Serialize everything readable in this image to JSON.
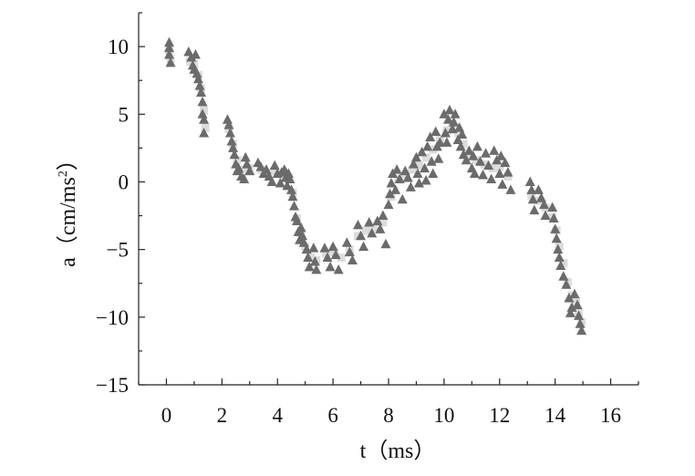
{
  "chart_data": {
    "type": "scatter",
    "xlabel": "t（ms）",
    "ylabel_main": "a（cm/ms",
    "ylabel_sup": "2",
    "ylabel_close": "）",
    "xlim": [
      -1,
      17
    ],
    "ylim": [
      -15,
      12.5
    ],
    "xticks": [
      0,
      2,
      4,
      6,
      8,
      10,
      12,
      14,
      16
    ],
    "yticks": [
      10,
      5,
      0,
      -5,
      -10,
      -15
    ],
    "grid": false,
    "series": [
      {
        "marker": "triangle",
        "color": "#6b6b6b",
        "points": [
          [
            0.1,
            10.3
          ],
          [
            0.1,
            9.9
          ],
          [
            0.1,
            9.4
          ],
          [
            0.15,
            8.8
          ],
          [
            0.8,
            9.6
          ],
          [
            0.9,
            9.2
          ],
          [
            0.95,
            8.6
          ],
          [
            1.0,
            8.3
          ],
          [
            1.05,
            9.4
          ],
          [
            1.1,
            8.0
          ],
          [
            1.15,
            7.6
          ],
          [
            1.2,
            7.1
          ],
          [
            1.25,
            6.6
          ],
          [
            1.3,
            5.9
          ],
          [
            1.3,
            5.0
          ],
          [
            1.35,
            4.6
          ],
          [
            1.35,
            3.6
          ],
          [
            2.2,
            4.6
          ],
          [
            2.25,
            4.2
          ],
          [
            2.3,
            3.6
          ],
          [
            2.35,
            3.0
          ],
          [
            2.4,
            2.5
          ],
          [
            2.45,
            2.0
          ],
          [
            2.5,
            1.3
          ],
          [
            2.55,
            0.8
          ],
          [
            2.6,
            1.0
          ],
          [
            2.7,
            0.4
          ],
          [
            2.8,
            0.2
          ],
          [
            2.85,
            1.8
          ],
          [
            2.9,
            1.3
          ],
          [
            3.0,
            0.8
          ],
          [
            3.3,
            1.4
          ],
          [
            3.4,
            1.1
          ],
          [
            3.5,
            0.6
          ],
          [
            3.6,
            0.9
          ],
          [
            3.7,
            0.4
          ],
          [
            3.8,
            0.0
          ],
          [
            3.9,
            1.2
          ],
          [
            4.0,
            0.6
          ],
          [
            4.1,
            -0.1
          ],
          [
            4.15,
            0.7
          ],
          [
            4.25,
            0.9
          ],
          [
            4.3,
            0.3
          ],
          [
            4.35,
            -0.3
          ],
          [
            4.4,
            0.6
          ],
          [
            4.45,
            0.2
          ],
          [
            4.5,
            -0.6
          ],
          [
            4.55,
            -1.1
          ],
          [
            4.6,
            -1.8
          ],
          [
            4.65,
            -2.6
          ],
          [
            4.7,
            -2.9
          ],
          [
            4.75,
            -3.7
          ],
          [
            4.8,
            -4.3
          ],
          [
            4.85,
            -3.4
          ],
          [
            4.9,
            -4.0
          ],
          [
            4.95,
            -4.5
          ],
          [
            5.05,
            -5.0
          ],
          [
            5.1,
            -5.6
          ],
          [
            5.15,
            -6.3
          ],
          [
            5.3,
            -4.9
          ],
          [
            5.35,
            -5.9
          ],
          [
            5.4,
            -6.5
          ],
          [
            5.7,
            -4.9
          ],
          [
            5.8,
            -5.6
          ],
          [
            5.9,
            -6.3
          ],
          [
            6.0,
            -4.8
          ],
          [
            6.1,
            -5.4
          ],
          [
            6.2,
            -6.5
          ],
          [
            6.5,
            -4.5
          ],
          [
            6.6,
            -5.2
          ],
          [
            6.7,
            -5.8
          ],
          [
            6.9,
            -3.2
          ],
          [
            7.0,
            -4.0
          ],
          [
            7.1,
            -4.8
          ],
          [
            7.3,
            -3.0
          ],
          [
            7.4,
            -3.8
          ],
          [
            7.6,
            -2.9
          ],
          [
            7.7,
            -3.5
          ],
          [
            7.8,
            -2.5
          ],
          [
            7.9,
            -4.6
          ],
          [
            8.0,
            -1.7
          ],
          [
            8.05,
            -0.9
          ],
          [
            8.1,
            -0.1
          ],
          [
            8.15,
            0.6
          ],
          [
            8.25,
            -0.6
          ],
          [
            8.3,
            0.9
          ],
          [
            8.4,
            0.2
          ],
          [
            8.5,
            -1.3
          ],
          [
            8.6,
            0.8
          ],
          [
            8.7,
            0.3
          ],
          [
            8.8,
            -0.4
          ],
          [
            8.9,
            1.3
          ],
          [
            9.0,
            1.8
          ],
          [
            9.05,
            0.6
          ],
          [
            9.1,
            -0.1
          ],
          [
            9.2,
            2.2
          ],
          [
            9.3,
            1.0
          ],
          [
            9.35,
            0.1
          ],
          [
            9.4,
            2.6
          ],
          [
            9.5,
            3.3
          ],
          [
            9.55,
            1.5
          ],
          [
            9.6,
            0.6
          ],
          [
            9.7,
            3.7
          ],
          [
            9.75,
            2.6
          ],
          [
            9.8,
            1.7
          ],
          [
            9.85,
            2.9
          ],
          [
            10.0,
            5.0
          ],
          [
            10.05,
            3.6
          ],
          [
            10.1,
            2.9
          ],
          [
            10.15,
            4.6
          ],
          [
            10.2,
            5.3
          ],
          [
            10.3,
            3.9
          ],
          [
            10.35,
            4.4
          ],
          [
            10.4,
            5.0
          ],
          [
            10.5,
            3.1
          ],
          [
            10.55,
            4.0
          ],
          [
            10.6,
            2.6
          ],
          [
            10.65,
            3.5
          ],
          [
            10.7,
            2.0
          ],
          [
            10.8,
            1.6
          ],
          [
            10.9,
            2.3
          ],
          [
            11.0,
            1.0
          ],
          [
            11.05,
            1.9
          ],
          [
            11.1,
            0.6
          ],
          [
            11.2,
            2.6
          ],
          [
            11.3,
            1.5
          ],
          [
            11.4,
            0.5
          ],
          [
            11.5,
            2.1
          ],
          [
            11.6,
            1.2
          ],
          [
            11.7,
            0.2
          ],
          [
            11.8,
            2.3
          ],
          [
            11.9,
            1.6
          ],
          [
            12.0,
            0.6
          ],
          [
            12.05,
            1.9
          ],
          [
            12.1,
            -0.2
          ],
          [
            12.2,
            1.4
          ],
          [
            12.3,
            0.7
          ],
          [
            12.4,
            -0.6
          ],
          [
            13.1,
            0.0
          ],
          [
            13.15,
            -0.6
          ],
          [
            13.2,
            -1.3
          ],
          [
            13.25,
            -2.1
          ],
          [
            13.4,
            -0.6
          ],
          [
            13.5,
            -1.2
          ],
          [
            13.6,
            -1.7
          ],
          [
            13.65,
            -2.5
          ],
          [
            13.9,
            -1.9
          ],
          [
            13.95,
            -2.7
          ],
          [
            14.0,
            -3.5
          ],
          [
            14.05,
            -4.2
          ],
          [
            14.1,
            -5.0
          ],
          [
            14.15,
            -5.6
          ],
          [
            14.2,
            -6.2
          ],
          [
            14.3,
            -7.0
          ],
          [
            14.4,
            -7.6
          ],
          [
            14.5,
            -8.6
          ],
          [
            14.55,
            -9.7
          ],
          [
            14.6,
            -9.3
          ],
          [
            14.7,
            -8.3
          ],
          [
            14.8,
            -9.1
          ],
          [
            14.85,
            -9.9
          ],
          [
            14.9,
            -10.5
          ],
          [
            14.95,
            -11.0
          ]
        ]
      },
      {
        "marker": "square",
        "color": "#dcdcdc",
        "points": [
          [
            0.1,
            9.7
          ],
          [
            0.15,
            9.1
          ],
          [
            0.85,
            8.9
          ],
          [
            1.0,
            8.7
          ],
          [
            1.15,
            7.9
          ],
          [
            1.25,
            6.9
          ],
          [
            1.35,
            5.3
          ],
          [
            1.4,
            4.0
          ],
          [
            2.25,
            3.9
          ],
          [
            2.4,
            2.8
          ],
          [
            2.55,
            1.6
          ],
          [
            2.75,
            0.9
          ],
          [
            3.0,
            1.0
          ],
          [
            3.4,
            0.9
          ],
          [
            3.6,
            0.6
          ],
          [
            3.9,
            0.8
          ],
          [
            4.2,
            0.4
          ],
          [
            4.4,
            0.3
          ],
          [
            4.55,
            -0.8
          ],
          [
            4.7,
            -2.7
          ],
          [
            4.85,
            -3.8
          ],
          [
            5.0,
            -4.8
          ],
          [
            5.2,
            -5.6
          ],
          [
            5.4,
            -5.8
          ],
          [
            5.75,
            -5.3
          ],
          [
            6.05,
            -5.2
          ],
          [
            6.3,
            -5.6
          ],
          [
            6.6,
            -5.0
          ],
          [
            6.9,
            -4.0
          ],
          [
            7.2,
            -3.6
          ],
          [
            7.5,
            -3.4
          ],
          [
            7.8,
            -3.0
          ],
          [
            8.1,
            -1.1
          ],
          [
            8.35,
            0.2
          ],
          [
            8.6,
            0.4
          ],
          [
            8.85,
            0.9
          ],
          [
            9.1,
            1.2
          ],
          [
            9.35,
            1.8
          ],
          [
            9.6,
            2.4
          ],
          [
            9.85,
            3.1
          ],
          [
            10.1,
            3.8
          ],
          [
            10.3,
            4.3
          ],
          [
            10.5,
            3.6
          ],
          [
            10.7,
            2.8
          ],
          [
            10.9,
            2.0
          ],
          [
            11.15,
            1.6
          ],
          [
            11.45,
            1.3
          ],
          [
            11.75,
            1.0
          ],
          [
            12.0,
            1.1
          ],
          [
            12.3,
            0.4
          ],
          [
            13.15,
            -1.0
          ],
          [
            13.4,
            -1.4
          ],
          [
            13.65,
            -1.9
          ],
          [
            13.9,
            -2.6
          ],
          [
            14.05,
            -3.6
          ],
          [
            14.15,
            -4.8
          ],
          [
            14.3,
            -6.0
          ],
          [
            14.45,
            -7.4
          ],
          [
            14.6,
            -8.4
          ],
          [
            14.75,
            -8.8
          ],
          [
            14.85,
            -9.6
          ],
          [
            14.95,
            -10.4
          ]
        ]
      }
    ]
  }
}
